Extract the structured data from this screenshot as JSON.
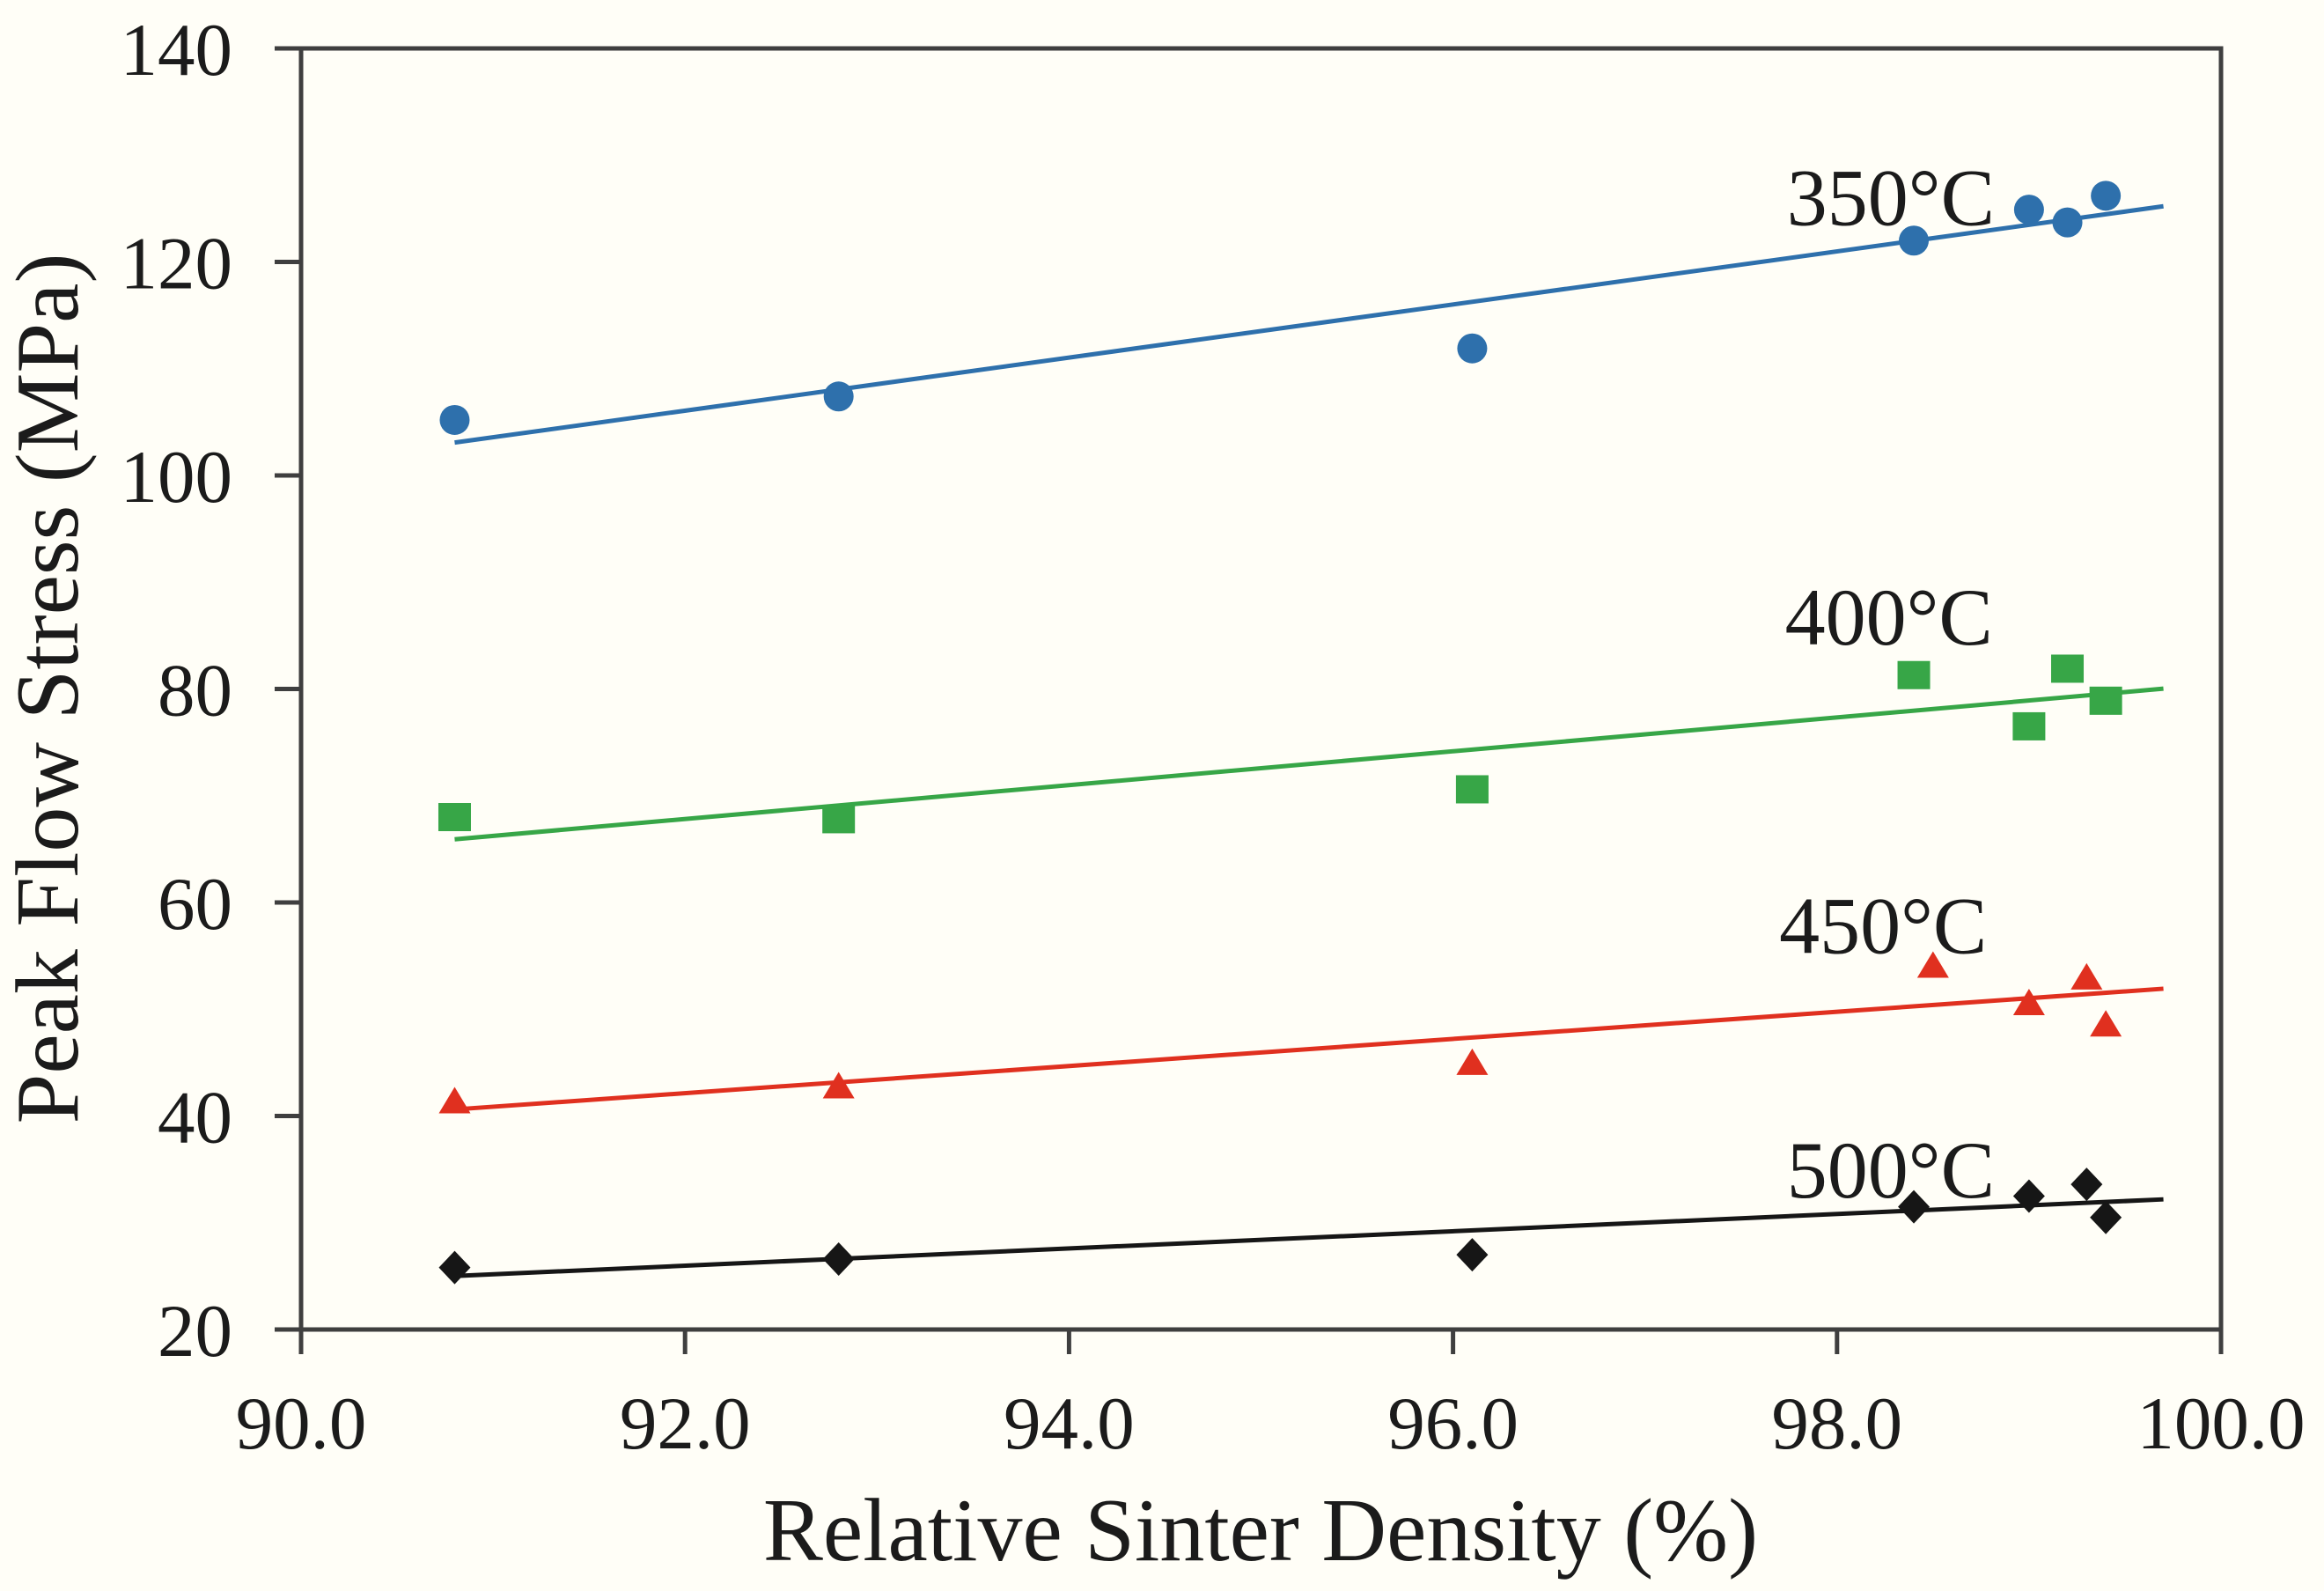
{
  "figure": {
    "background": "#fffef7",
    "frame_color": "#3f3f3f",
    "text_color": "#1b1b1b"
  },
  "axes": {
    "x": {
      "title": "Relative Sinter Density (%)",
      "min": 90.0,
      "max": 100.0,
      "tick_step": 2.0,
      "tick_labels": [
        "90.0",
        "92.0",
        "94.0",
        "96.0",
        "98.0",
        "100.0"
      ]
    },
    "y": {
      "title": "Peak Flow Stress (MPa)",
      "min": 20,
      "max": 140,
      "tick_step": 20,
      "tick_labels": [
        "20",
        "40",
        "60",
        "80",
        "100",
        "120",
        "140"
      ]
    }
  },
  "chart_data": {
    "type": "scatter",
    "title": "",
    "xlabel": "Relative Sinter Density (%)",
    "ylabel": "Peak Flow Stress (MPa)",
    "xlim": [
      90.0,
      100.0
    ],
    "ylim": [
      20,
      140
    ],
    "grid": false,
    "legend_position": "inline-annotations",
    "series": [
      {
        "name": "350°C",
        "marker": "circle",
        "color": "#2e70ac",
        "trendline": true,
        "label": "350°C",
        "label_x": 98.28,
        "label_y": 126.1,
        "points": [
          [
            90.8,
            105.2
          ],
          [
            92.8,
            107.4
          ],
          [
            96.1,
            111.9
          ],
          [
            98.4,
            122.0
          ],
          [
            99.0,
            124.9
          ],
          [
            99.2,
            123.7
          ],
          [
            99.4,
            126.2
          ]
        ]
      },
      {
        "name": "400°C",
        "marker": "square",
        "color": "#37a647",
        "trendline": true,
        "label": "400°C",
        "label_x": 98.27,
        "label_y": 86.8,
        "points": [
          [
            90.8,
            68.0
          ],
          [
            92.8,
            67.8
          ],
          [
            96.1,
            70.6
          ],
          [
            98.4,
            81.3
          ],
          [
            99.0,
            76.5
          ],
          [
            99.2,
            81.9
          ],
          [
            99.4,
            78.9
          ]
        ]
      },
      {
        "name": "450°C",
        "marker": "triangle",
        "color": "#e0301f",
        "trendline": true,
        "label": "450°C",
        "label_x": 98.24,
        "label_y": 57.9,
        "points": [
          [
            90.8,
            41.4
          ],
          [
            92.8,
            42.8
          ],
          [
            96.1,
            45.0
          ],
          [
            98.5,
            54.1
          ],
          [
            99.0,
            50.6
          ],
          [
            99.3,
            53.0
          ],
          [
            99.4,
            48.6
          ]
        ]
      },
      {
        "name": "500°C",
        "marker": "diamond",
        "color": "#161616",
        "trendline": true,
        "label": "500°C",
        "label_x": 98.28,
        "label_y": 35.0,
        "points": [
          [
            90.8,
            25.8
          ],
          [
            92.8,
            26.6
          ],
          [
            96.1,
            27.0
          ],
          [
            98.4,
            31.5
          ],
          [
            99.0,
            32.5
          ],
          [
            99.3,
            33.6
          ],
          [
            99.4,
            30.5
          ]
        ]
      }
    ]
  }
}
